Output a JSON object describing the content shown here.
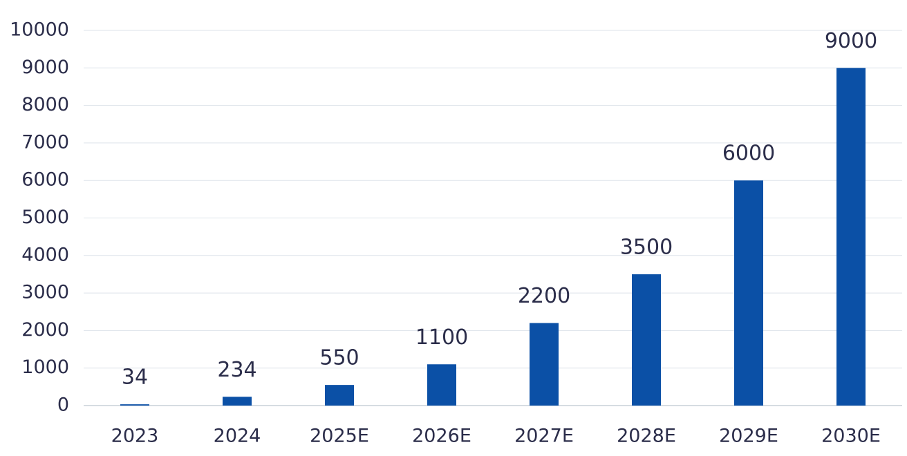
{
  "chart_data": {
    "type": "bar",
    "categories": [
      "2023",
      "2024",
      "2025E",
      "2026E",
      "2027E",
      "2028E",
      "2029E",
      "2030E"
    ],
    "values": [
      34,
      234,
      550,
      1100,
      2200,
      3500,
      6000,
      9000
    ],
    "color": "#0b50a6",
    "ylim": [
      0,
      10000
    ],
    "yticks": [
      0,
      1000,
      2000,
      3000,
      4000,
      5000,
      6000,
      7000,
      8000,
      9000,
      10000
    ],
    "grid": true
  }
}
